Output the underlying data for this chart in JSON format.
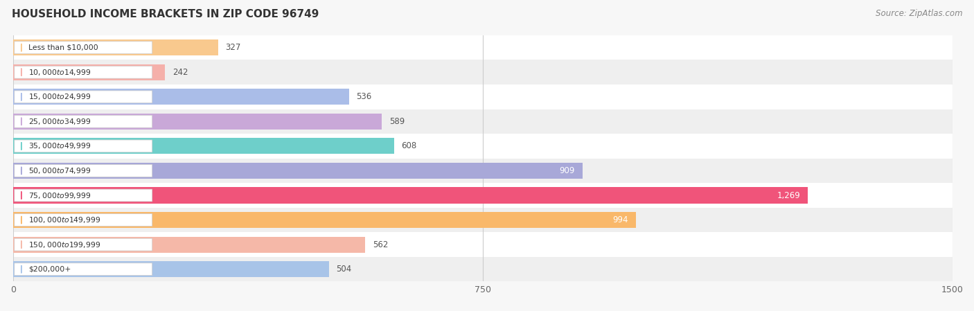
{
  "title": "HOUSEHOLD INCOME BRACKETS IN ZIP CODE 96749",
  "source": "Source: ZipAtlas.com",
  "categories": [
    "Less than $10,000",
    "$10,000 to $14,999",
    "$15,000 to $24,999",
    "$25,000 to $34,999",
    "$35,000 to $49,999",
    "$50,000 to $74,999",
    "$75,000 to $99,999",
    "$100,000 to $149,999",
    "$150,000 to $199,999",
    "$200,000+"
  ],
  "values": [
    327,
    242,
    536,
    589,
    608,
    909,
    1269,
    994,
    562,
    504
  ],
  "bar_colors": [
    "#f9c98e",
    "#f5b0aa",
    "#aabde8",
    "#c9a8d8",
    "#6ecfca",
    "#a8a8d8",
    "#f0547a",
    "#f9b86a",
    "#f5b8a8",
    "#a8c4e8"
  ],
  "xlim": [
    0,
    1500
  ],
  "xticks": [
    0,
    750,
    1500
  ],
  "bar_height": 0.65,
  "label_inside_threshold": 800,
  "figsize": [
    14.06,
    4.49
  ],
  "dpi": 100,
  "row_colors": [
    "#ffffff",
    "#efefef"
  ]
}
